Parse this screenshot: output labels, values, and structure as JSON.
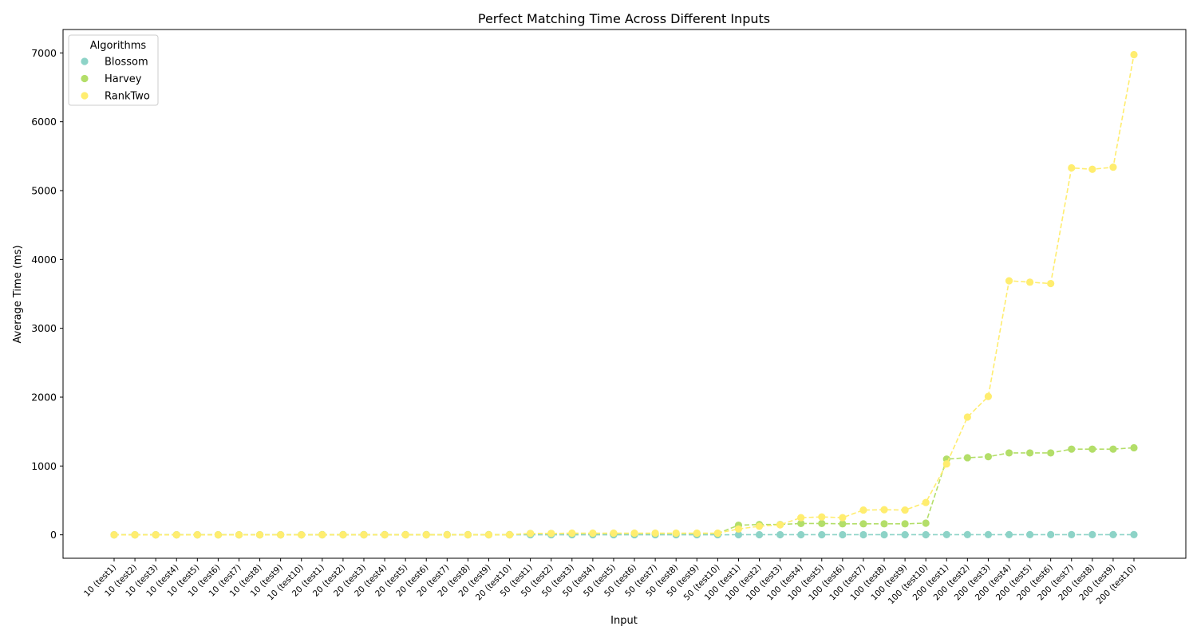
{
  "chart_data": {
    "type": "line",
    "title": "Perfect Matching Time Across Different Inputs",
    "xlabel": "Input",
    "ylabel": "Average Time (ms)",
    "ylim": [
      -340,
      7340
    ],
    "yticks": [
      0,
      1000,
      2000,
      3000,
      4000,
      5000,
      6000,
      7000
    ],
    "grid": false,
    "legend": {
      "title": "Algorithms",
      "placement": "top-left"
    },
    "x": [
      "10 (test1)",
      "10 (test2)",
      "10 (test3)",
      "10 (test4)",
      "10 (test5)",
      "10 (test6)",
      "10 (test7)",
      "10 (test8)",
      "10 (test9)",
      "10 (test10)",
      "20 (test1)",
      "20 (test2)",
      "20 (test3)",
      "20 (test4)",
      "20 (test5)",
      "20 (test6)",
      "20 (test7)",
      "20 (test8)",
      "20 (test9)",
      "20 (test10)",
      "50 (test1)",
      "50 (test2)",
      "50 (test3)",
      "50 (test4)",
      "50 (test5)",
      "50 (test6)",
      "50 (test7)",
      "50 (test8)",
      "50 (test9)",
      "50 (test10)",
      "100 (test1)",
      "100 (test2)",
      "100 (test3)",
      "100 (test4)",
      "100 (test5)",
      "100 (test6)",
      "100 (test7)",
      "100 (test8)",
      "100 (test9)",
      "100 (test10)",
      "200 (test1)",
      "200 (test2)",
      "200 (test3)",
      "200 (test4)",
      "200 (test5)",
      "200 (test6)",
      "200 (test7)",
      "200 (test8)",
      "200 (test9)",
      "200 (test10)"
    ],
    "series": [
      {
        "name": "Blossom",
        "color": "#8dd3c7",
        "values": [
          0,
          0,
          0,
          0,
          0,
          0,
          0,
          0,
          0,
          0,
          0,
          0,
          0,
          0,
          0,
          0,
          0,
          0,
          0,
          0,
          1,
          1,
          1,
          1,
          1,
          1,
          1,
          1,
          1,
          1,
          2,
          2,
          2,
          2,
          2,
          2,
          2,
          2,
          2,
          2,
          3,
          3,
          3,
          3,
          3,
          3,
          3,
          3,
          3,
          3
        ]
      },
      {
        "name": "Harvey",
        "color": "#b3de69",
        "values": [
          1,
          1,
          1,
          1,
          1,
          1,
          1,
          1,
          1,
          1,
          3,
          3,
          3,
          3,
          3,
          3,
          3,
          3,
          3,
          3,
          20,
          20,
          20,
          20,
          20,
          20,
          20,
          20,
          20,
          20,
          140,
          150,
          150,
          165,
          165,
          160,
          160,
          160,
          160,
          170,
          1100,
          1120,
          1135,
          1190,
          1190,
          1190,
          1245,
          1245,
          1245,
          1265
        ]
      },
      {
        "name": "RankTwo",
        "color": "#ffed6f",
        "values": [
          0,
          0,
          0,
          0,
          0,
          0,
          0,
          0,
          0,
          0,
          1,
          1,
          1,
          1,
          1,
          1,
          1,
          1,
          1,
          1,
          20,
          20,
          25,
          25,
          25,
          25,
          25,
          25,
          25,
          25,
          85,
          125,
          145,
          250,
          260,
          250,
          360,
          365,
          360,
          470,
          1030,
          1710,
          2010,
          3690,
          3670,
          3650,
          5330,
          5310,
          5340,
          6975
        ]
      }
    ]
  }
}
